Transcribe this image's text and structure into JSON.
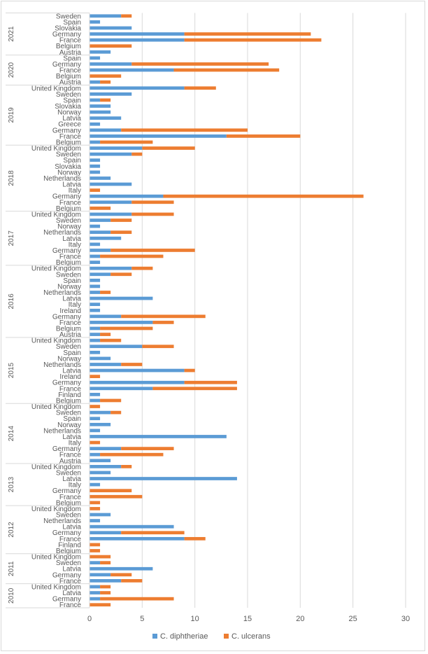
{
  "chart_data": {
    "type": "bar",
    "orientation": "horizontal",
    "stacked": true,
    "title": "",
    "xlabel": "",
    "ylabel": "",
    "xlim": [
      0,
      30
    ],
    "xticks": [
      0,
      5,
      10,
      15,
      20,
      25,
      30
    ],
    "grid": true,
    "legend_position": "bottom",
    "colors": {
      "C. diphtheriae": "#5b9bd5",
      "C. ulcerans": "#ed7d31"
    },
    "series_names": [
      "C. diphtheriae",
      "C. ulcerans"
    ],
    "groups": [
      {
        "year": "2021",
        "rows": [
          {
            "country": "Sweden",
            "diphtheriae": 3,
            "ulcerans": 1
          },
          {
            "country": "Spain",
            "diphtheriae": 1,
            "ulcerans": 0
          },
          {
            "country": "Slovakia",
            "diphtheriae": 4,
            "ulcerans": 0
          },
          {
            "country": "Germany",
            "diphtheriae": 9,
            "ulcerans": 12
          },
          {
            "country": "France",
            "diphtheriae": 9,
            "ulcerans": 13
          },
          {
            "country": "Belgium",
            "diphtheriae": 0,
            "ulcerans": 4
          },
          {
            "country": "Austria",
            "diphtheriae": 2,
            "ulcerans": 0
          }
        ]
      },
      {
        "year": "2020",
        "rows": [
          {
            "country": "Spain",
            "diphtheriae": 1,
            "ulcerans": 0
          },
          {
            "country": "Germany",
            "diphtheriae": 4,
            "ulcerans": 13
          },
          {
            "country": "France",
            "diphtheriae": 8,
            "ulcerans": 10
          },
          {
            "country": "Belgium",
            "diphtheriae": 0,
            "ulcerans": 3
          },
          {
            "country": "Austria",
            "diphtheriae": 1,
            "ulcerans": 1
          }
        ]
      },
      {
        "year": "2019",
        "rows": [
          {
            "country": "United Kingdom",
            "diphtheriae": 9,
            "ulcerans": 3
          },
          {
            "country": "Sweden",
            "diphtheriae": 4,
            "ulcerans": 0
          },
          {
            "country": "Spain",
            "diphtheriae": 1,
            "ulcerans": 1
          },
          {
            "country": "Slovakia",
            "diphtheriae": 2,
            "ulcerans": 0
          },
          {
            "country": "Norway",
            "diphtheriae": 2,
            "ulcerans": 0
          },
          {
            "country": "Latvia",
            "diphtheriae": 3,
            "ulcerans": 0
          },
          {
            "country": "Greece",
            "diphtheriae": 1,
            "ulcerans": 0
          },
          {
            "country": "Germany",
            "diphtheriae": 3,
            "ulcerans": 12
          },
          {
            "country": "France",
            "diphtheriae": 13,
            "ulcerans": 7
          },
          {
            "country": "Belgium",
            "diphtheriae": 1,
            "ulcerans": 5
          }
        ]
      },
      {
        "year": "2018",
        "rows": [
          {
            "country": "United Kingdom",
            "diphtheriae": 5,
            "ulcerans": 5
          },
          {
            "country": "Sweden",
            "diphtheriae": 4,
            "ulcerans": 1
          },
          {
            "country": "Spain",
            "diphtheriae": 1,
            "ulcerans": 0
          },
          {
            "country": "Slovakia",
            "diphtheriae": 1,
            "ulcerans": 0
          },
          {
            "country": "Norway",
            "diphtheriae": 1,
            "ulcerans": 0
          },
          {
            "country": "Netherlands",
            "diphtheriae": 2,
            "ulcerans": 0
          },
          {
            "country": "Latvia",
            "diphtheriae": 4,
            "ulcerans": 0
          },
          {
            "country": "Italy",
            "diphtheriae": 0,
            "ulcerans": 1
          },
          {
            "country": "Germany",
            "diphtheriae": 7,
            "ulcerans": 19
          },
          {
            "country": "France",
            "diphtheriae": 4,
            "ulcerans": 4
          },
          {
            "country": "Belgium",
            "diphtheriae": 0,
            "ulcerans": 2
          }
        ]
      },
      {
        "year": "2017",
        "rows": [
          {
            "country": "United Kingdom",
            "diphtheriae": 4,
            "ulcerans": 4
          },
          {
            "country": "Sweden",
            "diphtheriae": 2,
            "ulcerans": 2
          },
          {
            "country": "Norway",
            "diphtheriae": 1,
            "ulcerans": 0
          },
          {
            "country": "Netherlands",
            "diphtheriae": 2,
            "ulcerans": 2
          },
          {
            "country": "Latvia",
            "diphtheriae": 3,
            "ulcerans": 0
          },
          {
            "country": "Italy",
            "diphtheriae": 1,
            "ulcerans": 0
          },
          {
            "country": "Germany",
            "diphtheriae": 2,
            "ulcerans": 8
          },
          {
            "country": "France",
            "diphtheriae": 1,
            "ulcerans": 6
          },
          {
            "country": "Belgium",
            "diphtheriae": 1,
            "ulcerans": 0
          }
        ]
      },
      {
        "year": "2016",
        "rows": [
          {
            "country": "United Kingdom",
            "diphtheriae": 4,
            "ulcerans": 2
          },
          {
            "country": "Sweden",
            "diphtheriae": 2,
            "ulcerans": 2
          },
          {
            "country": "Spain",
            "diphtheriae": 1,
            "ulcerans": 0
          },
          {
            "country": "Norway",
            "diphtheriae": 1,
            "ulcerans": 0
          },
          {
            "country": "Netherlands",
            "diphtheriae": 1,
            "ulcerans": 1
          },
          {
            "country": "Latvia",
            "diphtheriae": 6,
            "ulcerans": 0
          },
          {
            "country": "Italy",
            "diphtheriae": 1,
            "ulcerans": 0
          },
          {
            "country": "Ireland",
            "diphtheriae": 1,
            "ulcerans": 0
          },
          {
            "country": "Germany",
            "diphtheriae": 3,
            "ulcerans": 8
          },
          {
            "country": "France",
            "diphtheriae": 6,
            "ulcerans": 2
          },
          {
            "country": "Belgium",
            "diphtheriae": 1,
            "ulcerans": 5
          },
          {
            "country": "Austria",
            "diphtheriae": 1,
            "ulcerans": 1
          }
        ]
      },
      {
        "year": "2015",
        "rows": [
          {
            "country": "United Kingdom",
            "diphtheriae": 1,
            "ulcerans": 2
          },
          {
            "country": "Sweden",
            "diphtheriae": 5,
            "ulcerans": 3
          },
          {
            "country": "Spain",
            "diphtheriae": 1,
            "ulcerans": 0
          },
          {
            "country": "Norway",
            "diphtheriae": 2,
            "ulcerans": 0
          },
          {
            "country": "Netherlands",
            "diphtheriae": 3,
            "ulcerans": 2
          },
          {
            "country": "Latvia",
            "diphtheriae": 9,
            "ulcerans": 1
          },
          {
            "country": "Ireland",
            "diphtheriae": 0,
            "ulcerans": 1
          },
          {
            "country": "Germany",
            "diphtheriae": 9,
            "ulcerans": 5
          },
          {
            "country": "France",
            "diphtheriae": 6,
            "ulcerans": 8
          },
          {
            "country": "Finland",
            "diphtheriae": 1,
            "ulcerans": 0
          },
          {
            "country": "Belgium",
            "diphtheriae": 1,
            "ulcerans": 2
          }
        ]
      },
      {
        "year": "2014",
        "rows": [
          {
            "country": "United Kingdom",
            "diphtheriae": 0,
            "ulcerans": 1
          },
          {
            "country": "Sweden",
            "diphtheriae": 2,
            "ulcerans": 1
          },
          {
            "country": "Spain",
            "diphtheriae": 1,
            "ulcerans": 0
          },
          {
            "country": "Norway",
            "diphtheriae": 2,
            "ulcerans": 0
          },
          {
            "country": "Netherlands",
            "diphtheriae": 1,
            "ulcerans": 0
          },
          {
            "country": "Latvia",
            "diphtheriae": 13,
            "ulcerans": 0
          },
          {
            "country": "Italy",
            "diphtheriae": 0,
            "ulcerans": 1
          },
          {
            "country": "Germany",
            "diphtheriae": 3,
            "ulcerans": 5
          },
          {
            "country": "France",
            "diphtheriae": 1,
            "ulcerans": 6
          },
          {
            "country": "Austria",
            "diphtheriae": 2,
            "ulcerans": 0
          }
        ]
      },
      {
        "year": "2013",
        "rows": [
          {
            "country": "United Kingdom",
            "diphtheriae": 3,
            "ulcerans": 1
          },
          {
            "country": "Sweden",
            "diphtheriae": 2,
            "ulcerans": 0
          },
          {
            "country": "Latvia",
            "diphtheriae": 14,
            "ulcerans": 0
          },
          {
            "country": "Italy",
            "diphtheriae": 1,
            "ulcerans": 0
          },
          {
            "country": "Germany",
            "diphtheriae": 0,
            "ulcerans": 4
          },
          {
            "country": "France",
            "diphtheriae": 0,
            "ulcerans": 5
          },
          {
            "country": "Belgium",
            "diphtheriae": 0,
            "ulcerans": 1
          }
        ]
      },
      {
        "year": "2012",
        "rows": [
          {
            "country": "United Kingdom",
            "diphtheriae": 0,
            "ulcerans": 1
          },
          {
            "country": "Sweden",
            "diphtheriae": 2,
            "ulcerans": 0
          },
          {
            "country": "Netherlands",
            "diphtheriae": 1,
            "ulcerans": 0
          },
          {
            "country": "Latvia",
            "diphtheriae": 8,
            "ulcerans": 0
          },
          {
            "country": "Germany",
            "diphtheriae": 3,
            "ulcerans": 6
          },
          {
            "country": "France",
            "diphtheriae": 9,
            "ulcerans": 2
          },
          {
            "country": "Finland",
            "diphtheriae": 0,
            "ulcerans": 1
          },
          {
            "country": "Belgium",
            "diphtheriae": 0,
            "ulcerans": 1
          }
        ]
      },
      {
        "year": "2011",
        "rows": [
          {
            "country": "United Kingdom",
            "diphtheriae": 0,
            "ulcerans": 2
          },
          {
            "country": "Sweden",
            "diphtheriae": 1,
            "ulcerans": 1
          },
          {
            "country": "Latvia",
            "diphtheriae": 6,
            "ulcerans": 0
          },
          {
            "country": "Germany",
            "diphtheriae": 2,
            "ulcerans": 2
          },
          {
            "country": "France",
            "diphtheriae": 3,
            "ulcerans": 2
          }
        ]
      },
      {
        "year": "2010",
        "rows": [
          {
            "country": "United Kingdom",
            "diphtheriae": 1,
            "ulcerans": 1
          },
          {
            "country": "Latvia",
            "diphtheriae": 1,
            "ulcerans": 1
          },
          {
            "country": "Germany",
            "diphtheriae": 1,
            "ulcerans": 7
          },
          {
            "country": "France",
            "diphtheriae": 0,
            "ulcerans": 2
          }
        ]
      }
    ]
  }
}
